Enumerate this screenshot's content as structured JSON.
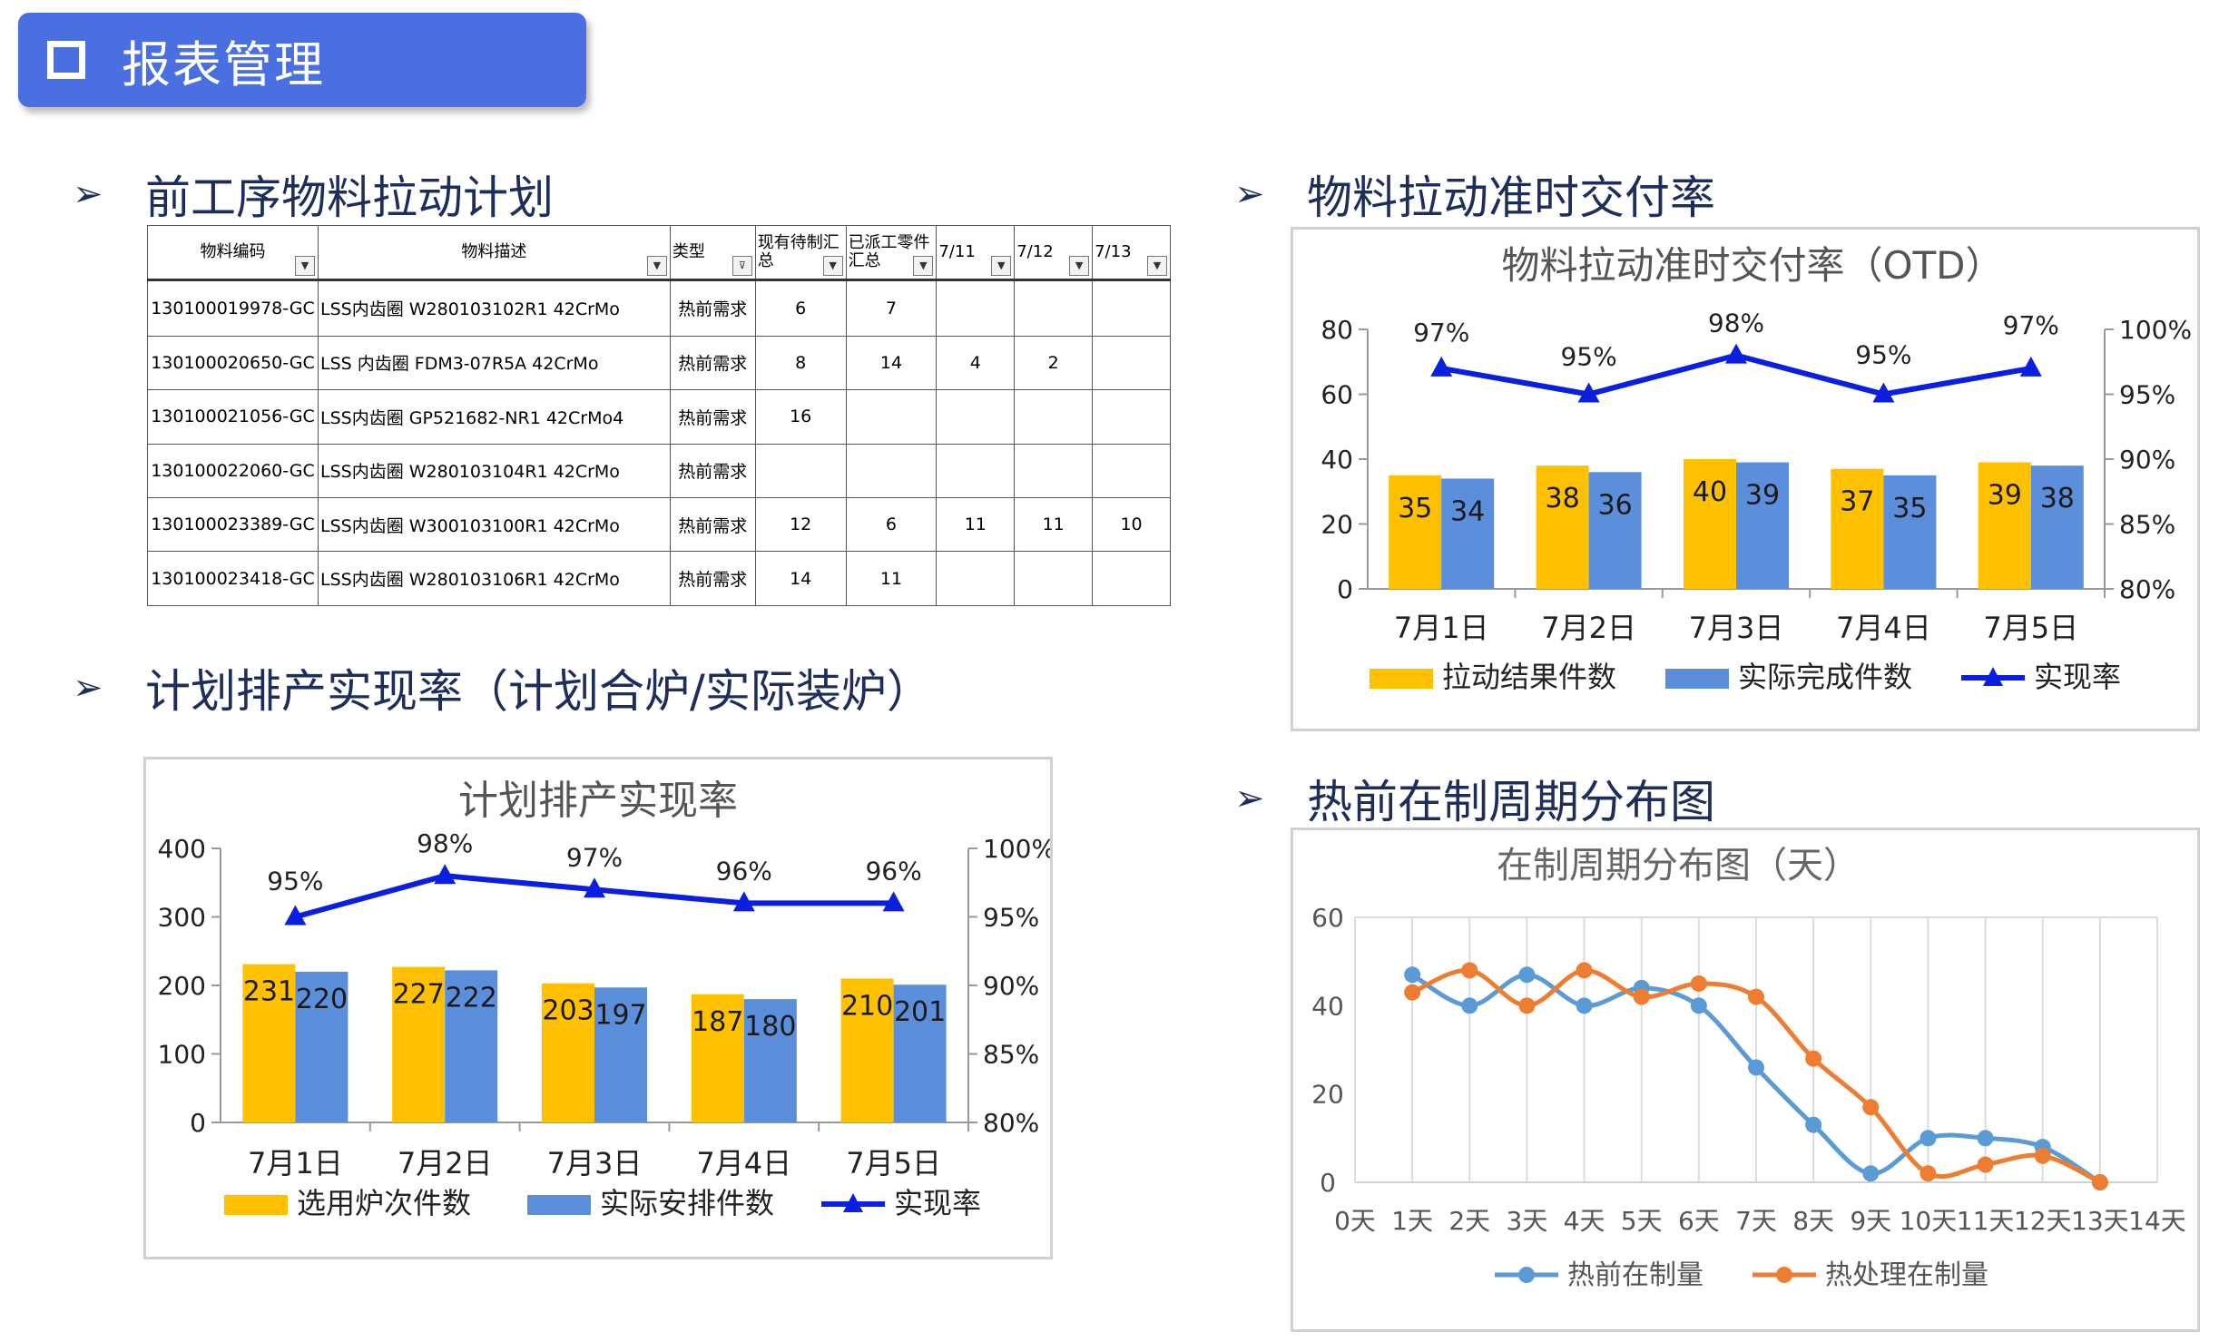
{
  "banner": {
    "title": "报表管理",
    "icon": "square-bullet-icon"
  },
  "sections": {
    "s1": "前工序物料拉动计划",
    "s2": "计划排产实现率（计划合炉/实际装炉）",
    "s3": "物料拉动准时交付率",
    "s4": "热前在制周期分布图"
  },
  "table": {
    "headers": [
      "物料编码",
      "物料描述",
      "类型",
      "现有待制汇总",
      "已派工零件汇总",
      "7/11",
      "7/12",
      "7/13"
    ],
    "rows": [
      [
        "130100019978-GC",
        "LSS内齿圈 W280103102R1 42CrMo",
        "热前需求",
        "6",
        "7",
        "",
        "",
        ""
      ],
      [
        "130100020650-GC",
        "LSS 内齿圈 FDM3-07R5A 42CrMo",
        "热前需求",
        "8",
        "14",
        "4",
        "2",
        ""
      ],
      [
        "130100021056-GC",
        "LSS内齿圈 GP521682-NR1 42CrMo4",
        "热前需求",
        "16",
        "",
        "",
        "",
        ""
      ],
      [
        "130100022060-GC",
        "LSS内齿圈 W280103104R1 42CrMo",
        "热前需求",
        "",
        "",
        "",
        "",
        ""
      ],
      [
        "130100023389-GC",
        "LSS内齿圈 W300103100R1 42CrMo",
        "热前需求",
        "12",
        "6",
        "11",
        "11",
        "10"
      ],
      [
        "130100023418-GC",
        "LSS内齿圈 W280103106R1 42CrMo",
        "热前需求",
        "14",
        "11",
        "",
        "",
        ""
      ]
    ]
  },
  "chart_data": [
    {
      "id": "plan",
      "type": "bar",
      "title": "计划排产实现率",
      "categories": [
        "7月1日",
        "7月2日",
        "7月3日",
        "7月4日",
        "7月5日"
      ],
      "series": [
        {
          "name": "选用炉次件数",
          "values": [
            231,
            227,
            203,
            187,
            210
          ],
          "color": "#ffc000"
        },
        {
          "name": "实际安排件数",
          "values": [
            220,
            222,
            197,
            180,
            201
          ],
          "color": "#5b8fdb"
        }
      ],
      "line": {
        "name": "实现率",
        "values": [
          95,
          98,
          97,
          96,
          96
        ],
        "labels": [
          "95%",
          "98%",
          "97%",
          "96%",
          "96%"
        ],
        "color": "#0a1fe0"
      },
      "ylim": [
        0,
        400
      ],
      "yticks": [
        "0",
        "100",
        "200",
        "300",
        "400"
      ],
      "y2lim": [
        80,
        100
      ],
      "y2ticks": [
        "80%",
        "85%",
        "90%",
        "95%",
        "100%"
      ],
      "legend": "bottom"
    },
    {
      "id": "otd",
      "type": "bar",
      "title": "物料拉动准时交付率（OTD）",
      "categories": [
        "7月1日",
        "7月2日",
        "7月3日",
        "7月4日",
        "7月5日"
      ],
      "series": [
        {
          "name": "拉动结果件数",
          "values": [
            35,
            38,
            40,
            37,
            39
          ],
          "color": "#ffc000"
        },
        {
          "name": "实际完成件数",
          "values": [
            34,
            36,
            39,
            35,
            38
          ],
          "color": "#5b8fdb"
        }
      ],
      "line": {
        "name": "实现率",
        "values": [
          97,
          95,
          98,
          95,
          97
        ],
        "labels": [
          "97%",
          "95%",
          "98%",
          "95%",
          "97%"
        ],
        "color": "#0a1fe0"
      },
      "ylim": [
        0,
        80
      ],
      "yticks": [
        "0",
        "20",
        "40",
        "60",
        "80"
      ],
      "y2lim": [
        80,
        100
      ],
      "y2ticks": [
        "80%",
        "85%",
        "90%",
        "95%",
        "100%"
      ],
      "legend": "bottom"
    },
    {
      "id": "cycle",
      "type": "line",
      "title": "在制周期分布图（天）",
      "categories": [
        "0天",
        "1天",
        "2天",
        "3天",
        "4天",
        "5天",
        "6天",
        "7天",
        "8天",
        "9天",
        "10天",
        "11天",
        "12天",
        "13天",
        "14天"
      ],
      "series": [
        {
          "name": "热前在制量",
          "x": [
            1,
            2,
            3,
            4,
            5,
            6,
            7,
            8,
            9,
            10,
            11,
            12,
            13
          ],
          "values": [
            47,
            40,
            47,
            40,
            44,
            40,
            26,
            13,
            2,
            10,
            10,
            8,
            0
          ],
          "color": "#5b9bd5"
        },
        {
          "name": "热处理在制量",
          "x": [
            1,
            2,
            3,
            4,
            5,
            6,
            7,
            8,
            9,
            10,
            11,
            12,
            13
          ],
          "values": [
            43,
            48,
            40,
            48,
            42,
            45,
            42,
            28,
            17,
            2,
            4,
            6,
            0
          ],
          "color": "#ed7d31"
        }
      ],
      "ylim": [
        0,
        60
      ],
      "yticks": [
        "0",
        "20",
        "40",
        "60"
      ],
      "grid": "vertical",
      "legend": "bottom"
    }
  ]
}
